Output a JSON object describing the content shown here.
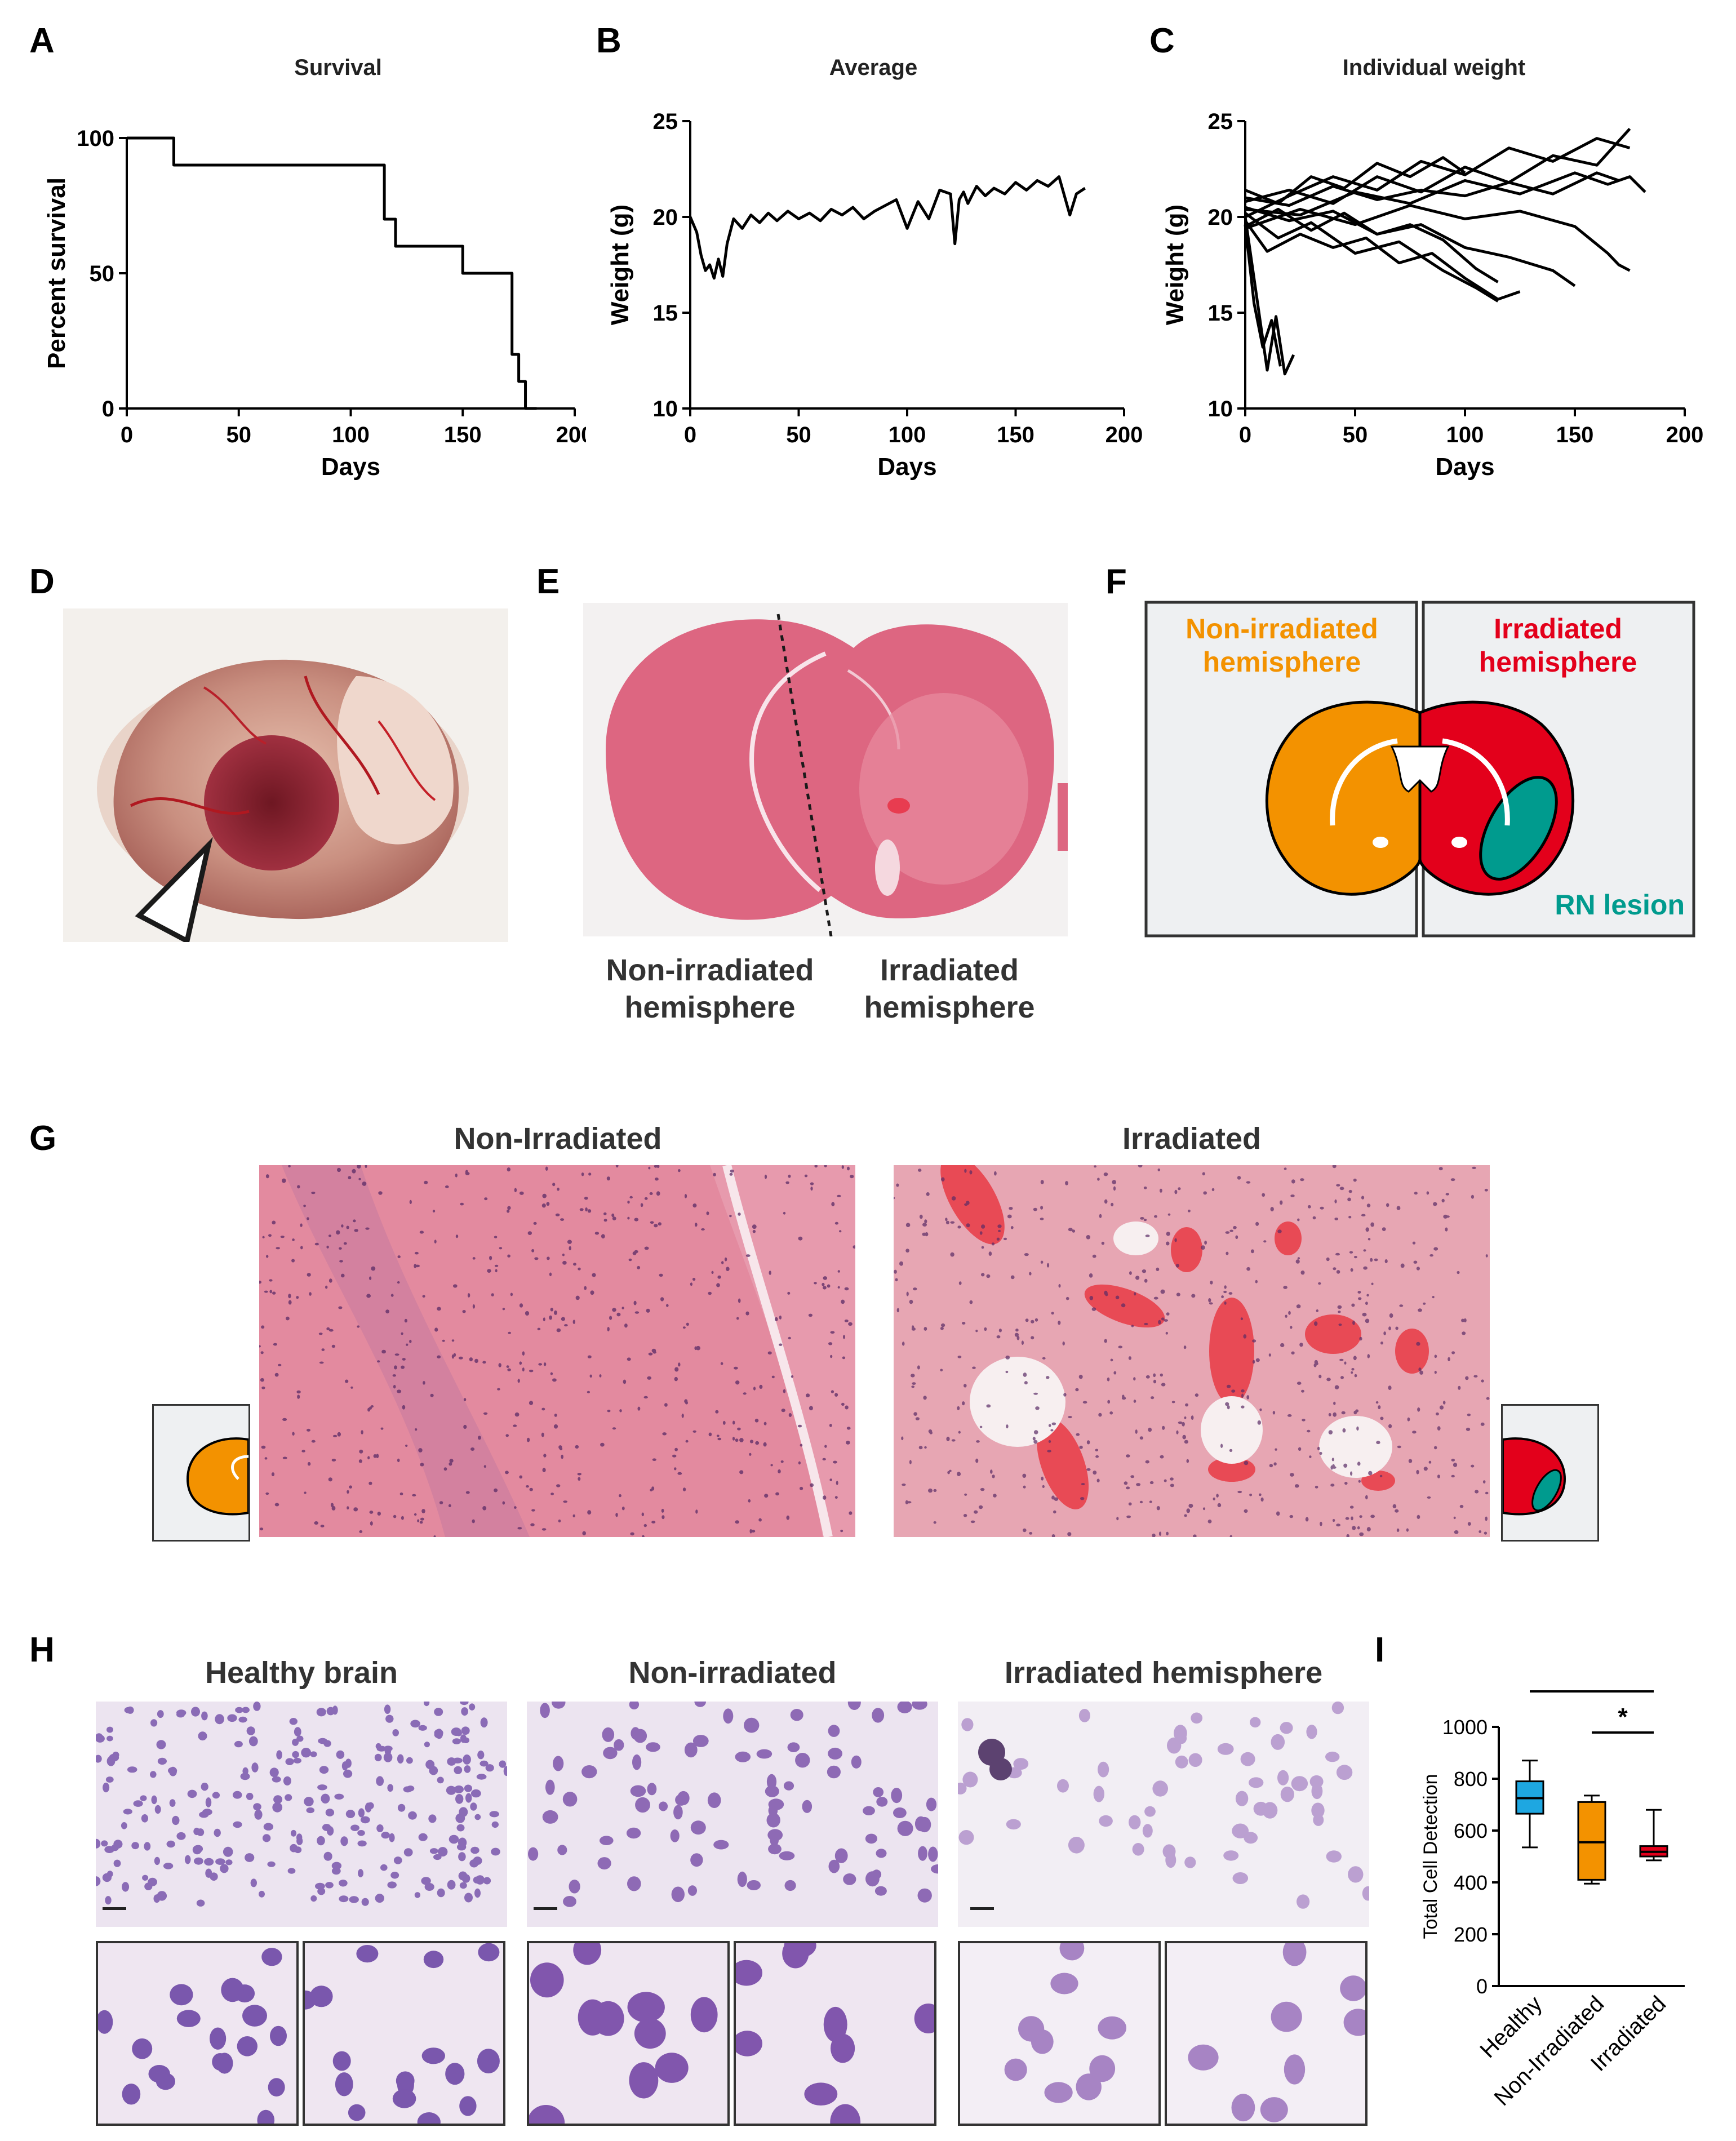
{
  "letters": {
    "A": "A",
    "B": "B",
    "C": "C",
    "D": "D",
    "E": "E",
    "F": "F",
    "G": "G",
    "H": "H",
    "I": "I"
  },
  "chart_data": [
    {
      "id": "A",
      "type": "line",
      "step": true,
      "title": "Survival",
      "xlabel": "Days",
      "ylabel": "Percent survival",
      "xlim": [
        0,
        200
      ],
      "ylim": [
        0,
        100
      ],
      "xticks": [
        "0",
        "50",
        "100",
        "150",
        "200"
      ],
      "yticks": [
        "0",
        "50",
        "100"
      ],
      "series": [
        {
          "x": [
            0,
            21,
            21,
            115,
            115,
            120,
            120,
            150,
            150,
            172,
            172,
            175,
            175,
            178,
            178,
            183,
            183
          ],
          "y": [
            100,
            100,
            90,
            90,
            70,
            70,
            60,
            60,
            50,
            50,
            20,
            20,
            10,
            10,
            0,
            0,
            0
          ]
        }
      ]
    },
    {
      "id": "B",
      "type": "line",
      "title": "Average",
      "xlabel": "Days",
      "ylabel": "Weight (g)",
      "xlim": [
        0,
        200
      ],
      "ylim": [
        10,
        25
      ],
      "xticks": [
        "0",
        "50",
        "100",
        "150",
        "200"
      ],
      "yticks": [
        "10",
        "15",
        "20",
        "25"
      ],
      "series": [
        {
          "x": [
            0,
            3,
            5,
            7,
            9,
            11,
            13,
            15,
            17,
            20,
            24,
            28,
            32,
            36,
            40,
            45,
            50,
            55,
            60,
            65,
            70,
            75,
            80,
            85,
            90,
            95,
            100,
            105,
            110,
            115,
            120,
            122,
            124,
            126,
            128,
            132,
            136,
            140,
            145,
            150,
            155,
            160,
            165,
            170,
            175,
            178,
            182
          ],
          "y": [
            20,
            19.2,
            18,
            17.2,
            17.5,
            16.8,
            17.8,
            16.9,
            18.6,
            19.9,
            19.4,
            20.1,
            19.7,
            20.2,
            19.8,
            20.3,
            19.9,
            20.2,
            19.8,
            20.4,
            20.1,
            20.5,
            19.9,
            20.3,
            20.6,
            20.9,
            19.4,
            20.8,
            19.9,
            21.4,
            21.2,
            18.6,
            20.9,
            21.3,
            20.7,
            21.6,
            21.1,
            21.5,
            21.2,
            21.8,
            21.4,
            21.9,
            21.6,
            22.1,
            20.1,
            21.2,
            21.5
          ]
        }
      ]
    },
    {
      "id": "C",
      "type": "line",
      "title": "Individual weight",
      "xlabel": "Days",
      "ylabel": "Weight (g)",
      "xlim": [
        0,
        200
      ],
      "ylim": [
        10,
        25
      ],
      "xticks": [
        "0",
        "50",
        "100",
        "150",
        "200"
      ],
      "yticks": [
        "10",
        "15",
        "20",
        "25"
      ],
      "series": [
        {
          "x": [
            0,
            5,
            10,
            14,
            18,
            22
          ],
          "y": [
            20,
            16,
            12,
            14.8,
            11.8,
            12.8
          ]
        },
        {
          "x": [
            0,
            4,
            8,
            12,
            16
          ],
          "y": [
            19.6,
            15.5,
            13.2,
            14.6,
            12.2
          ]
        },
        {
          "x": [
            0,
            10,
            25,
            40,
            55,
            70,
            85,
            100,
            115,
            125
          ],
          "y": [
            19.8,
            18.2,
            19.1,
            18.4,
            18.9,
            17.6,
            18.1,
            16.8,
            15.7,
            16.1
          ]
        },
        {
          "x": [
            0,
            15,
            30,
            50,
            70,
            90,
            105,
            115
          ],
          "y": [
            20.2,
            18.9,
            19.7,
            18.1,
            18.7,
            17.2,
            16.3,
            15.6
          ]
        },
        {
          "x": [
            0,
            20,
            40,
            60,
            80,
            100,
            120,
            140,
            150
          ],
          "y": [
            20.5,
            19.8,
            20.3,
            19.1,
            19.6,
            18.4,
            17.9,
            17.2,
            16.4
          ]
        },
        {
          "x": [
            0,
            25,
            50,
            75,
            100,
            125,
            150,
            165,
            170,
            175
          ],
          "y": [
            19.4,
            20.4,
            19.6,
            20.6,
            19.9,
            20.3,
            19.5,
            18.1,
            17.5,
            17.2
          ]
        },
        {
          "x": [
            0,
            20,
            40,
            60,
            80,
            100,
            120,
            140,
            160,
            175
          ],
          "y": [
            20.8,
            21.4,
            20.7,
            22.1,
            21.3,
            22.6,
            21.8,
            23.2,
            22.7,
            24.6
          ]
        },
        {
          "x": [
            0,
            20,
            40,
            60,
            80,
            100,
            120,
            140,
            160,
            175
          ],
          "y": [
            20,
            21.1,
            22.1,
            21.4,
            22.9,
            22.2,
            23.6,
            22.9,
            24.1,
            23.6
          ]
        },
        {
          "x": [
            0,
            25,
            50,
            75,
            100,
            125,
            150,
            165,
            175,
            182
          ],
          "y": [
            20.4,
            20.1,
            21.3,
            20.7,
            21.9,
            21.2,
            22.3,
            21.7,
            22.1,
            21.3
          ]
        },
        {
          "x": [
            0,
            20,
            40,
            60,
            80,
            100,
            120,
            140,
            160,
            170
          ],
          "y": [
            21,
            20.6,
            21.6,
            20.9,
            21.4,
            21.1,
            21.8,
            21.2,
            22.3,
            21.9
          ]
        },
        {
          "x": [
            0,
            15,
            30,
            45,
            60,
            75,
            90,
            105,
            115
          ],
          "y": [
            19.5,
            20.4,
            19.3,
            20.2,
            19.1,
            19.6,
            18.8,
            17.3,
            16.6
          ]
        },
        {
          "x": [
            0,
            15,
            30,
            45,
            60,
            75,
            90,
            100
          ],
          "y": [
            21.4,
            20.7,
            22.1,
            21.5,
            22.8,
            22.1,
            23.1,
            22.3
          ]
        }
      ]
    },
    {
      "id": "I",
      "type": "box",
      "ylabel": "Total Cell Detection",
      "ylim": [
        0,
        1000
      ],
      "yticks": [
        "0",
        "200",
        "400",
        "600",
        "800",
        "1000"
      ],
      "categories": [
        "Healthy",
        "Non-Irradiated",
        "Irradiated"
      ],
      "colors": [
        "#1ea7e1",
        "#f39200",
        "#e3001b"
      ],
      "boxes": [
        {
          "min": 535,
          "q1": 665,
          "median": 725,
          "q3": 790,
          "max": 870
        },
        {
          "min": 395,
          "q1": 410,
          "median": 555,
          "q3": 710,
          "max": 735
        },
        {
          "min": 485,
          "q1": 500,
          "median": 518,
          "q3": 540,
          "max": 680
        }
      ],
      "significance": [
        "**",
        "*"
      ]
    }
  ],
  "panelE": {
    "left_caption": "Non-irradiated\nhemisphere",
    "right_caption": "Irradiated\nhemisphere"
  },
  "panelF": {
    "left_label": "Non-irradiated\nhemisphere",
    "right_label": "Irradiated\nhemisphere",
    "lesion_label": "RN lesion",
    "colors": {
      "non_irradiated": "#f39200",
      "irradiated": "#e3001b",
      "lesion": "#009b8e",
      "background": "#eef0f2"
    }
  },
  "panelG": {
    "left_title": "Non-Irradiated",
    "right_title": "Irradiated"
  },
  "panelH": {
    "titles": [
      "Healthy brain",
      "Non-irradiated",
      "Irradiated hemisphere"
    ]
  }
}
